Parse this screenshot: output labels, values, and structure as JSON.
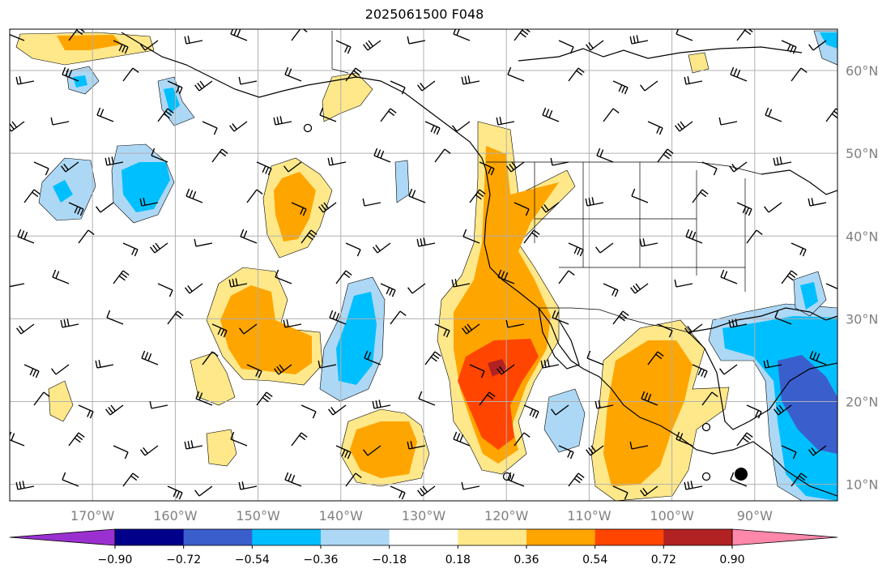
{
  "map": {
    "title": "2025061500 F048",
    "lon_labels": [
      "170°W",
      "160°W",
      "150°W",
      "140°W",
      "130°W",
      "120°W",
      "110°W",
      "100°W",
      "90°W"
    ],
    "lat_labels": [
      "60°N",
      "50°N",
      "40°N",
      "30°N",
      "20°N",
      "10°N"
    ],
    "extent": {
      "lon_min": -180,
      "lon_max": -80,
      "lat_min": 8,
      "lat_max": 65
    },
    "label_color": "#808080",
    "gridline_color": "#b0b0b0"
  },
  "colorbar": {
    "tick_labels": [
      "−0.90",
      "−0.72",
      "−0.54",
      "−0.36",
      "−0.18",
      "0.18",
      "0.36",
      "0.54",
      "0.72",
      "0.90"
    ],
    "colors": [
      "#9b30d0",
      "#00008b",
      "#3a5fcd",
      "#00bfff",
      "#add8f5",
      "#ffffff",
      "#ffe88a",
      "#ffa500",
      "#ff4500",
      "#b22222",
      "#ff88aa"
    ]
  }
}
